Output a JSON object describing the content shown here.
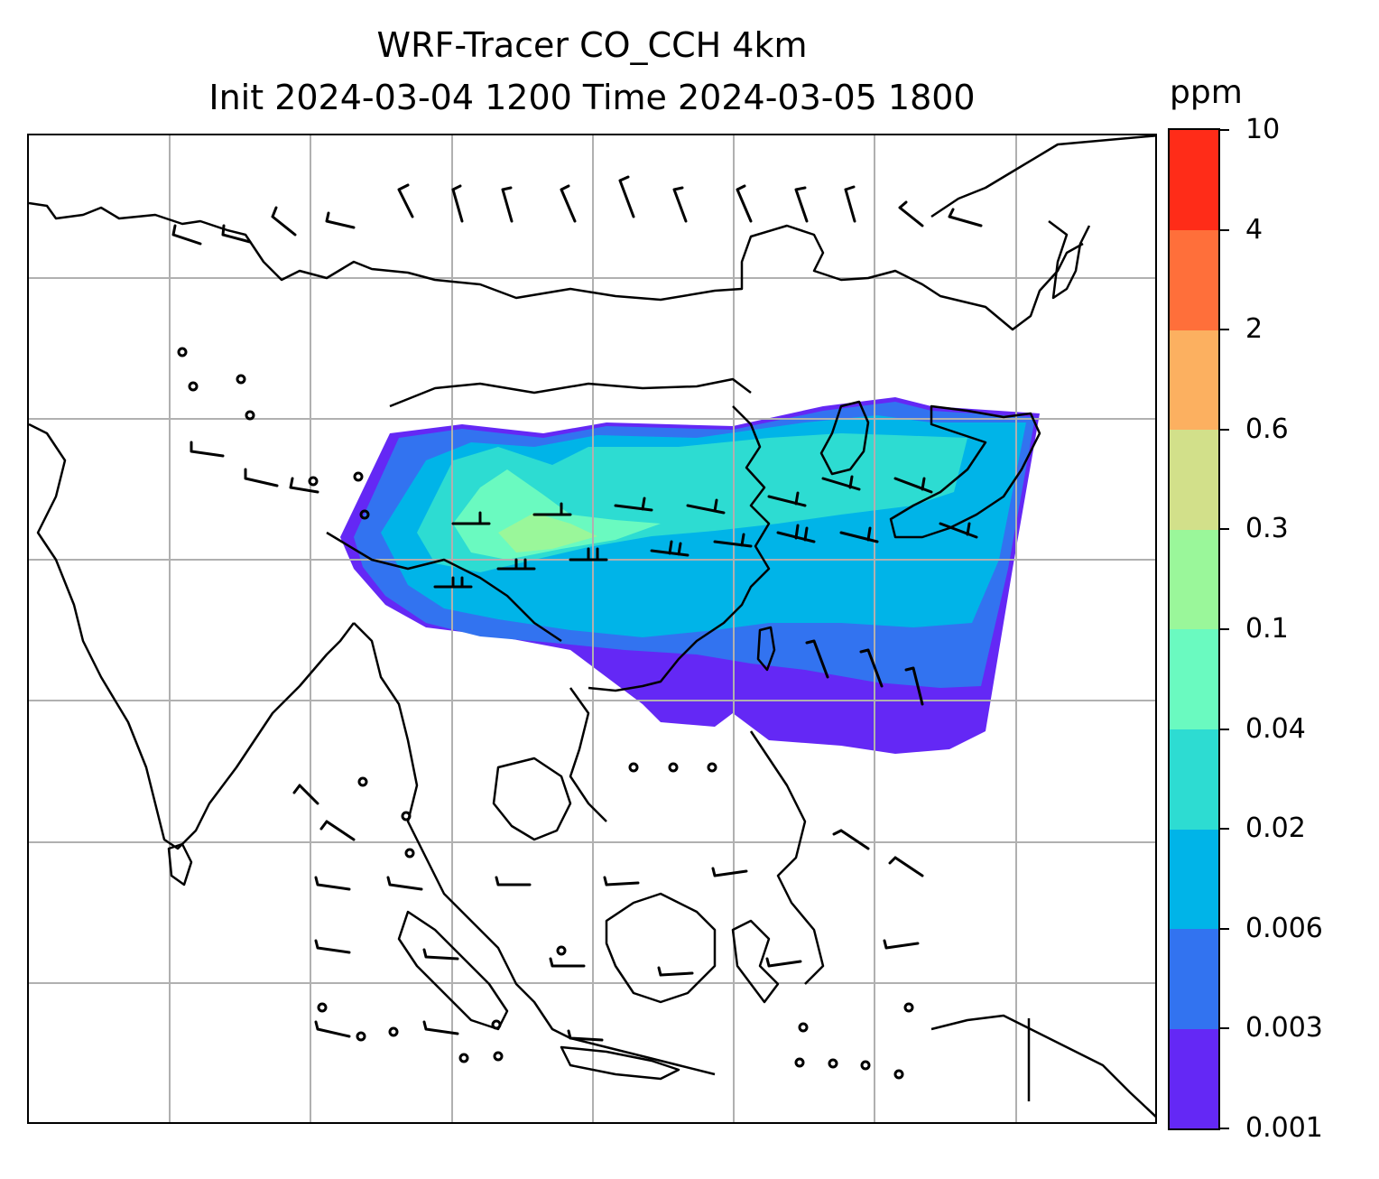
{
  "title": {
    "line1": "WRF-Tracer CO_CCH 4km",
    "line2": "Init 2024-03-04 1200 Time 2024-03-05 1800"
  },
  "colorbar": {
    "unit": "ppm",
    "ticks": [
      "0.001",
      "0.003",
      "0.006",
      "0.02",
      "0.04",
      "0.1",
      "0.3",
      "0.6",
      "2",
      "4",
      "10"
    ],
    "colors": [
      "#6428f5",
      "#3273f0",
      "#00b4e8",
      "#2ddcd2",
      "#6afac0",
      "#9af79a",
      "#d2e08a",
      "#fcb060",
      "#ff6f3a",
      "#ff2c18"
    ]
  },
  "map": {
    "region": "East and Southeast Asia",
    "gridline_color": "#b0b0b0",
    "coastline_color": "#000000",
    "wind_barbs": true
  }
}
